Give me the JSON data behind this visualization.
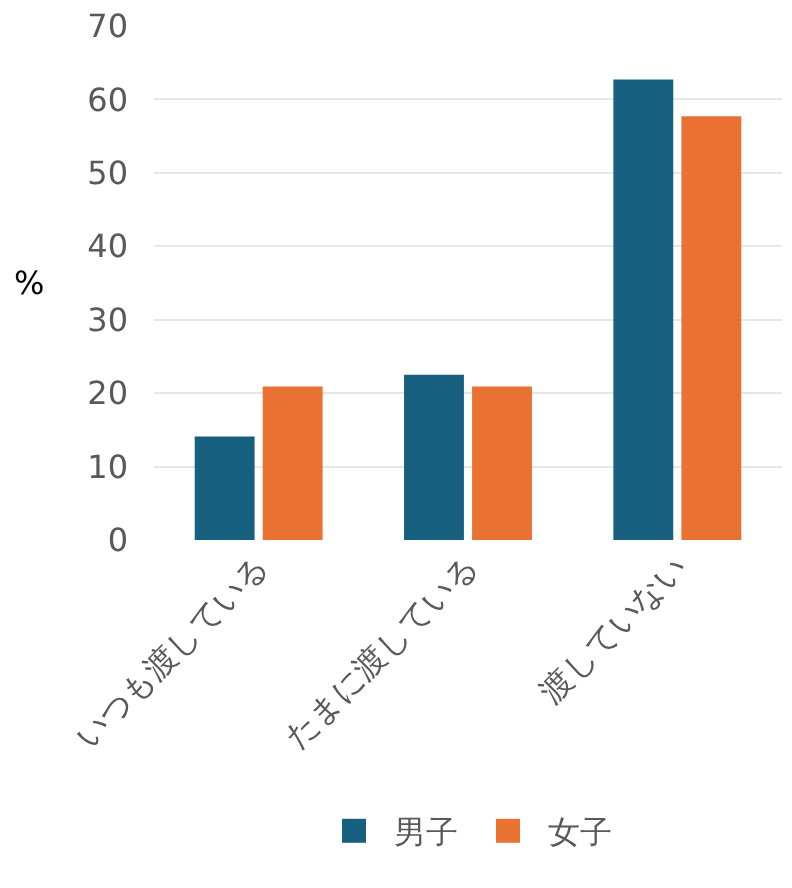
{
  "chart_data": {
    "type": "bar",
    "ylabel": "%",
    "categories": [
      "いつも渡している",
      "たまに渡している",
      "渡していない"
    ],
    "series": [
      {
        "name": "男子",
        "color": "#17607f",
        "values": [
          14.1,
          22.5,
          62.7
        ]
      },
      {
        "name": "女子",
        "color": "#e97132",
        "values": [
          20.9,
          20.9,
          57.7
        ]
      }
    ],
    "ylim": [
      0,
      70
    ],
    "yticks": [
      0,
      10,
      20,
      30,
      40,
      50,
      60,
      70
    ],
    "grid": "y",
    "legend": "bottom"
  }
}
